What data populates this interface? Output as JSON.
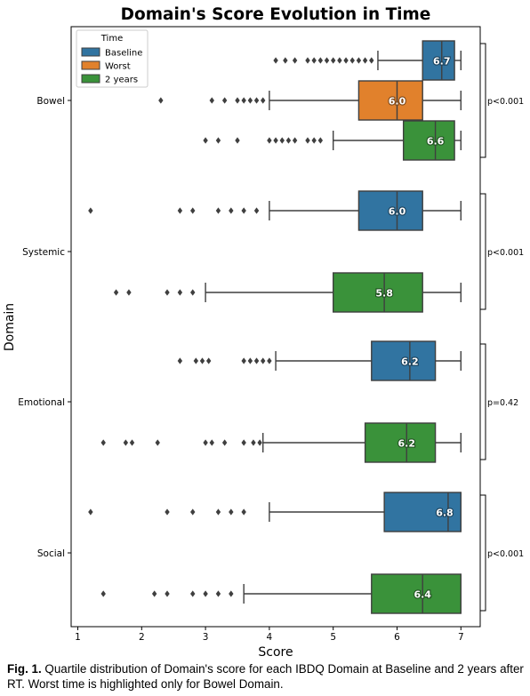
{
  "chart_data": {
    "type": "boxplot-horizontal",
    "title": "Domain's Score Evolution in Time",
    "xlabel": "Score",
    "ylabel": "Domain",
    "xlim": [
      0.95,
      7.3
    ],
    "xticks": [
      1,
      2,
      3,
      4,
      5,
      6,
      7
    ],
    "legend": {
      "title": "Time",
      "placement": "top-left",
      "entries": [
        {
          "label": "Baseline",
          "color": "#3174a1"
        },
        {
          "label": "Worst",
          "color": "#e1812c"
        },
        {
          "label": "2 years",
          "color": "#3a923a"
        }
      ]
    },
    "groups": [
      {
        "domain": "Bowel",
        "pvalue": "p<0.001",
        "boxes": [
          {
            "series": "Baseline",
            "color": "#3174a1",
            "whisker_low": 5.7,
            "q1": 6.4,
            "median": 6.7,
            "q3": 6.9,
            "whisker_high": 7.0,
            "mean_label": "6.7",
            "outliers": [
              4.1,
              4.25,
              4.4,
              4.6,
              4.7,
              4.8,
              4.9,
              5.0,
              5.1,
              5.2,
              5.3,
              5.4,
              5.5,
              5.6
            ]
          },
          {
            "series": "Worst",
            "color": "#e1812c",
            "whisker_low": 4.0,
            "q1": 5.4,
            "median": 6.0,
            "q3": 6.4,
            "whisker_high": 7.0,
            "mean_label": "6.0",
            "outliers": [
              2.3,
              3.1,
              3.3,
              3.5,
              3.6,
              3.7,
              3.8,
              3.9
            ]
          },
          {
            "series": "2 years",
            "color": "#3a923a",
            "whisker_low": 5.0,
            "q1": 6.1,
            "median": 6.6,
            "q3": 6.9,
            "whisker_high": 7.0,
            "mean_label": "6.6",
            "outliers": [
              3.0,
              3.2,
              3.5,
              4.0,
              4.1,
              4.2,
              4.3,
              4.4,
              4.6,
              4.7,
              4.8
            ]
          }
        ]
      },
      {
        "domain": "Systemic",
        "pvalue": "p<0.001",
        "boxes": [
          {
            "series": "Baseline",
            "color": "#3174a1",
            "whisker_low": 4.0,
            "q1": 5.4,
            "median": 6.0,
            "q3": 6.4,
            "whisker_high": 7.0,
            "mean_label": "6.0",
            "outliers": [
              1.2,
              2.6,
              2.8,
              3.2,
              3.4,
              3.6,
              3.8
            ]
          },
          {
            "series": "2 years",
            "color": "#3a923a",
            "whisker_low": 3.0,
            "q1": 5.0,
            "median": 5.8,
            "q3": 6.4,
            "whisker_high": 7.0,
            "mean_label": "5.8",
            "outliers": [
              1.6,
              1.8,
              2.4,
              2.6,
              2.8
            ]
          }
        ]
      },
      {
        "domain": "Emotional",
        "pvalue": "p=0.42",
        "boxes": [
          {
            "series": "Baseline",
            "color": "#3174a1",
            "whisker_low": 4.1,
            "q1": 5.6,
            "median": 6.2,
            "q3": 6.6,
            "whisker_high": 7.0,
            "mean_label": "6.2",
            "outliers": [
              2.6,
              2.85,
              2.95,
              3.05,
              3.6,
              3.7,
              3.8,
              3.9,
              4.0
            ]
          },
          {
            "series": "2 years",
            "color": "#3a923a",
            "whisker_low": 3.9,
            "q1": 5.5,
            "median": 6.15,
            "q3": 6.6,
            "whisker_high": 7.0,
            "mean_label": "6.2",
            "outliers": [
              1.4,
              1.75,
              1.85,
              2.25,
              3.0,
              3.1,
              3.3,
              3.6,
              3.75,
              3.85
            ]
          }
        ]
      },
      {
        "domain": "Social",
        "pvalue": "p<0.001",
        "boxes": [
          {
            "series": "Baseline",
            "color": "#3174a1",
            "whisker_low": 4.0,
            "q1": 5.8,
            "median": 6.8,
            "q3": 7.0,
            "whisker_high": 7.0,
            "mean_label": "6.8",
            "outliers": [
              1.2,
              2.4,
              2.8,
              3.2,
              3.4,
              3.6
            ]
          },
          {
            "series": "2 years",
            "color": "#3a923a",
            "whisker_low": 3.6,
            "q1": 5.6,
            "median": 6.4,
            "q3": 7.0,
            "whisker_high": 7.0,
            "mean_label": "6.4",
            "outliers": [
              1.4,
              2.2,
              2.4,
              2.8,
              3.0,
              3.2,
              3.4
            ]
          }
        ]
      }
    ]
  },
  "caption": {
    "label": "Fig. 1.",
    "text": " Quartile distribution of Domain's score for each IBDQ Domain at Baseline and 2 years after RT. Worst time is highlighted only for Bowel Domain."
  }
}
